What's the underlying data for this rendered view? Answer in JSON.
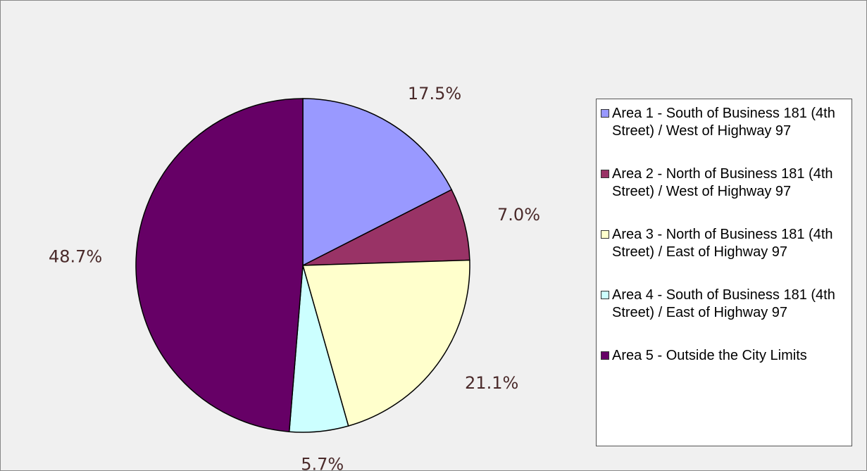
{
  "chart_data": {
    "type": "pie",
    "categories": [
      "Area 1 - South of Business 181 (4th Street) / West of Highway 97",
      "Area 2 - North of Business 181 (4th Street) / West of Highway 97",
      "Area 3 - North of Business 181 (4th Street) / East of Highway 97",
      "Area 4 - South of Business 181 (4th Street) / East of Highway 97",
      "Area 5  - Outside the City Limits"
    ],
    "values": [
      17.5,
      7.0,
      21.1,
      5.7,
      48.7
    ],
    "value_labels": [
      "17.5%",
      "7.0%",
      "21.1%",
      "5.7%",
      "48.7%"
    ],
    "colors": [
      "#9999ff",
      "#993366",
      "#ffffcc",
      "#ccffff",
      "#660066"
    ],
    "legend": "right"
  }
}
